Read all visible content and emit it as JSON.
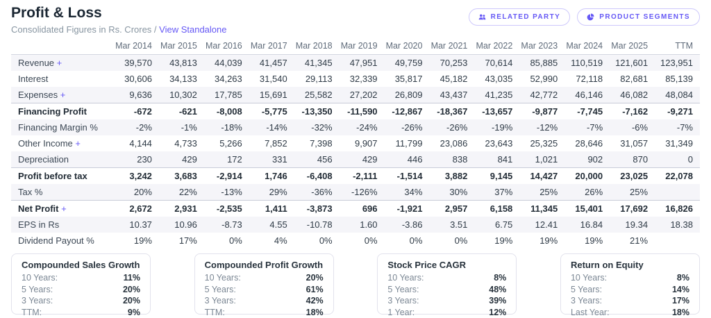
{
  "colors": {
    "accent": "#6558f5",
    "stripe": "#f5f5f9"
  },
  "header": {
    "title": "Profit & Loss",
    "subtitle": "Consolidated Figures in Rs. Crores /",
    "view_link": "View Standalone",
    "buttons": [
      {
        "label": "RELATED PARTY",
        "icon": "users-icon"
      },
      {
        "label": "PRODUCT SEGMENTS",
        "icon": "pie-chart-icon"
      }
    ]
  },
  "table": {
    "expand_symbol": "+",
    "columns": [
      "",
      "Mar 2014",
      "Mar 2015",
      "Mar 2016",
      "Mar 2017",
      "Mar 2018",
      "Mar 2019",
      "Mar 2020",
      "Mar 2021",
      "Mar 2022",
      "Mar 2023",
      "Mar 2024",
      "Mar 2025",
      "TTM"
    ],
    "rows": [
      {
        "label": "Revenue",
        "expandable": true,
        "bold": false,
        "values": [
          "39,570",
          "43,813",
          "44,039",
          "41,457",
          "41,345",
          "47,951",
          "49,759",
          "70,253",
          "70,614",
          "85,885",
          "110,519",
          "121,601",
          "123,951"
        ]
      },
      {
        "label": "Interest",
        "expandable": false,
        "bold": false,
        "values": [
          "30,606",
          "34,133",
          "34,263",
          "31,540",
          "29,113",
          "32,339",
          "35,817",
          "45,182",
          "43,035",
          "52,990",
          "72,118",
          "82,681",
          "85,139"
        ]
      },
      {
        "label": "Expenses",
        "expandable": true,
        "bold": false,
        "values": [
          "9,636",
          "10,302",
          "17,785",
          "15,691",
          "25,582",
          "27,202",
          "26,809",
          "43,437",
          "41,235",
          "42,772",
          "46,146",
          "46,082",
          "48,084"
        ]
      },
      {
        "label": "Financing Profit",
        "expandable": false,
        "bold": true,
        "values": [
          "-672",
          "-621",
          "-8,008",
          "-5,775",
          "-13,350",
          "-11,590",
          "-12,867",
          "-18,367",
          "-13,657",
          "-9,877",
          "-7,745",
          "-7,162",
          "-9,271"
        ]
      },
      {
        "label": "Financing Margin %",
        "expandable": false,
        "bold": false,
        "values": [
          "-2%",
          "-1%",
          "-18%",
          "-14%",
          "-32%",
          "-24%",
          "-26%",
          "-26%",
          "-19%",
          "-12%",
          "-7%",
          "-6%",
          "-7%"
        ]
      },
      {
        "label": "Other Income",
        "expandable": true,
        "bold": false,
        "values": [
          "4,144",
          "4,733",
          "5,266",
          "7,852",
          "7,398",
          "9,907",
          "11,799",
          "23,086",
          "23,643",
          "25,325",
          "28,646",
          "31,057",
          "31,349"
        ]
      },
      {
        "label": "Depreciation",
        "expandable": false,
        "bold": false,
        "values": [
          "230",
          "429",
          "172",
          "331",
          "456",
          "429",
          "446",
          "838",
          "841",
          "1,021",
          "902",
          "870",
          "0"
        ]
      },
      {
        "label": "Profit before tax",
        "expandable": false,
        "bold": true,
        "values": [
          "3,242",
          "3,683",
          "-2,914",
          "1,746",
          "-6,408",
          "-2,111",
          "-1,514",
          "3,882",
          "9,145",
          "14,427",
          "20,000",
          "23,025",
          "22,078"
        ]
      },
      {
        "label": "Tax %",
        "expandable": false,
        "bold": false,
        "values": [
          "20%",
          "22%",
          "-13%",
          "29%",
          "-36%",
          "-126%",
          "34%",
          "30%",
          "37%",
          "25%",
          "26%",
          "25%",
          ""
        ]
      },
      {
        "label": "Net Profit",
        "expandable": true,
        "bold": true,
        "values": [
          "2,672",
          "2,931",
          "-2,535",
          "1,411",
          "-3,873",
          "696",
          "-1,921",
          "2,957",
          "6,158",
          "11,345",
          "15,401",
          "17,692",
          "16,826"
        ]
      },
      {
        "label": "EPS in Rs",
        "expandable": false,
        "bold": false,
        "values": [
          "10.37",
          "10.96",
          "-8.73",
          "4.55",
          "-10.78",
          "1.60",
          "-3.86",
          "3.51",
          "6.75",
          "12.41",
          "16.84",
          "19.34",
          "18.38"
        ]
      },
      {
        "label": "Dividend Payout %",
        "expandable": false,
        "bold": false,
        "values": [
          "19%",
          "17%",
          "0%",
          "4%",
          "0%",
          "0%",
          "0%",
          "0%",
          "19%",
          "19%",
          "19%",
          "21%",
          ""
        ]
      }
    ]
  },
  "cards": [
    {
      "title": "Compounded Sales Growth",
      "rows": [
        {
          "label": "10 Years:",
          "value": "11%"
        },
        {
          "label": "5 Years:",
          "value": "20%"
        },
        {
          "label": "3 Years:",
          "value": "20%"
        },
        {
          "label": "TTM:",
          "value": "9%"
        }
      ]
    },
    {
      "title": "Compounded Profit Growth",
      "rows": [
        {
          "label": "10 Years:",
          "value": "20%"
        },
        {
          "label": "5 Years:",
          "value": "61%"
        },
        {
          "label": "3 Years:",
          "value": "42%"
        },
        {
          "label": "TTM:",
          "value": "18%"
        }
      ]
    },
    {
      "title": "Stock Price CAGR",
      "rows": [
        {
          "label": "10 Years:",
          "value": "8%"
        },
        {
          "label": "5 Years:",
          "value": "48%"
        },
        {
          "label": "3 Years:",
          "value": "39%"
        },
        {
          "label": "1 Year:",
          "value": "12%"
        }
      ]
    },
    {
      "title": "Return on Equity",
      "rows": [
        {
          "label": "10 Years:",
          "value": "8%"
        },
        {
          "label": "5 Years:",
          "value": "14%"
        },
        {
          "label": "3 Years:",
          "value": "17%"
        },
        {
          "label": "Last Year:",
          "value": "18%"
        }
      ]
    }
  ]
}
